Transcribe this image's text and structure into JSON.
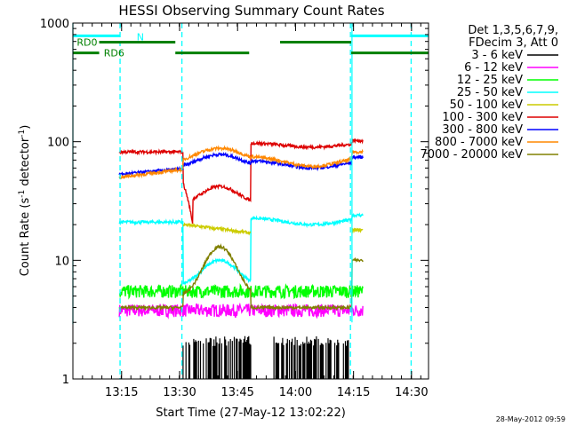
{
  "chart_data": {
    "type": "line",
    "title": "HESSI Observing Summary Count Rates",
    "xlabel": "Start Time (27-May-12 13:02:22)",
    "ylabel_main": "Count Rate (s",
    "ylabel_sup1": "-1",
    "ylabel_mid": " detector",
    "ylabel_sup2": "-1",
    "ylabel_end": ")",
    "ylog": true,
    "ylim": [
      1,
      1000
    ],
    "xlim_minutes": [
      0,
      92
    ],
    "x_tick_labels": [
      "13:15",
      "13:30",
      "13:45",
      "14:00",
      "14:15",
      "14:30"
    ],
    "x_tick_minutes": [
      12.6,
      27.6,
      42.6,
      57.6,
      72.6,
      87.6
    ],
    "y_tick_labels": [
      "1",
      "10",
      "100",
      "1000"
    ],
    "y_tick_values": [
      1,
      10,
      100,
      1000
    ],
    "legend_header": [
      "Det 1,3,5,6,7,9,",
      "FDecim 3, Att 0"
    ],
    "series": [
      {
        "name": "3 - 6 keV",
        "color": "#000000"
      },
      {
        "name": "6 - 12 keV",
        "color": "#ff00ff"
      },
      {
        "name": "12 - 25 keV",
        "color": "#00ff00"
      },
      {
        "name": "25 - 50 keV",
        "color": "#00ffff"
      },
      {
        "name": "50 - 100 keV",
        "color": "#cccc00"
      },
      {
        "name": "100 - 300 keV",
        "color": "#dd0000"
      },
      {
        "name": "300 - 800 keV",
        "color": "#0000ff"
      },
      {
        "name": "800 - 7000 keV",
        "color": "#ff8800"
      },
      {
        "name": "7000 - 20000 keV",
        "color": "#808000"
      }
    ],
    "annotations": {
      "night_label": "N",
      "rd0_label": "RD0",
      "rd6_label": "RD6"
    },
    "timestamp": "28-May-2012 09:59"
  }
}
